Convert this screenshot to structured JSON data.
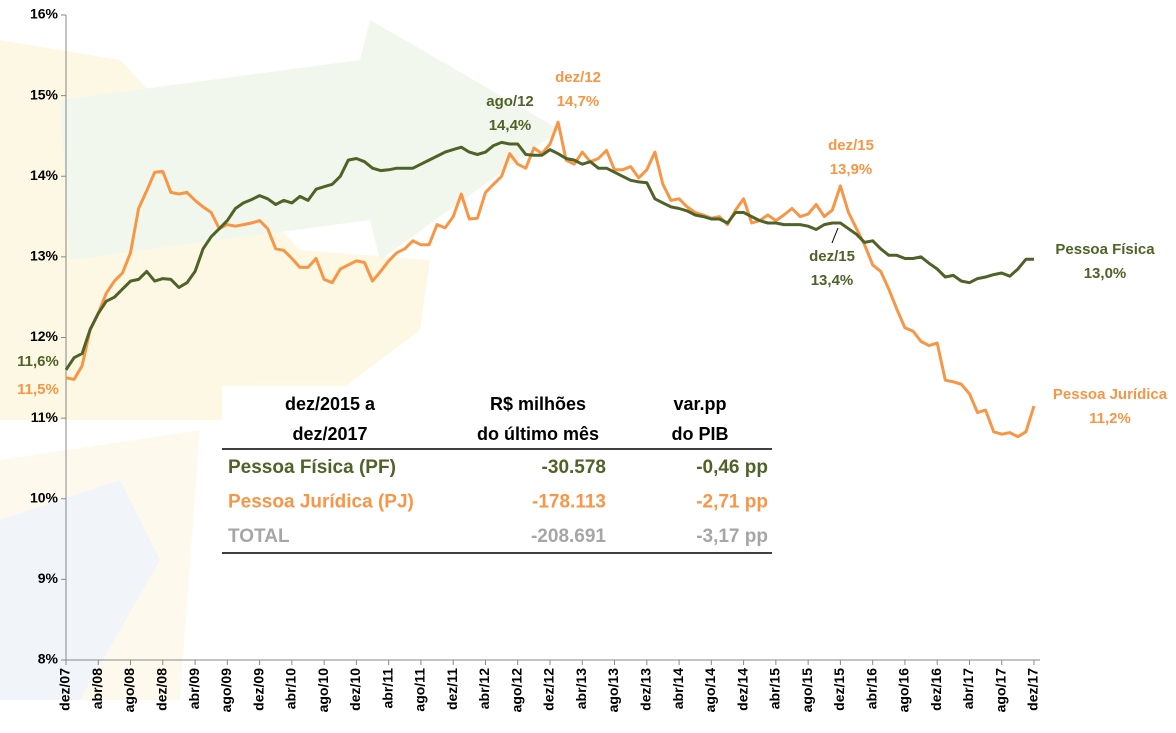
{
  "chart_data": {
    "type": "line",
    "categories": [
      "dez/07",
      null,
      null,
      null,
      "abr/08",
      null,
      null,
      null,
      "ago/08",
      null,
      null,
      null,
      "dez/08",
      null,
      null,
      null,
      "abr/09",
      null,
      null,
      null,
      "ago/09",
      null,
      null,
      null,
      "dez/09",
      null,
      null,
      null,
      "abr/10",
      null,
      null,
      null,
      "ago/10",
      null,
      null,
      null,
      "dez/10",
      null,
      null,
      null,
      "abr/11",
      null,
      null,
      null,
      "ago/11",
      null,
      null,
      null,
      "dez/11",
      null,
      null,
      null,
      "abr/12",
      null,
      null,
      null,
      "ago/12",
      null,
      null,
      null,
      "dez/12",
      null,
      null,
      null,
      "abr/13",
      null,
      null,
      null,
      "ago/13",
      null,
      null,
      null,
      "dez/13",
      null,
      null,
      null,
      "abr/14",
      null,
      null,
      null,
      "ago/14",
      null,
      null,
      null,
      "dez/14",
      null,
      null,
      null,
      "abr/15",
      null,
      null,
      null,
      "ago/15",
      null,
      null,
      null,
      "dez/15",
      null,
      null,
      null,
      "abr/16",
      null,
      null,
      null,
      "ago/16",
      null,
      null,
      null,
      "dez/16",
      null,
      null,
      null,
      "abr/17",
      null,
      null,
      null,
      "ago/17",
      null,
      null,
      null,
      "dez/17"
    ],
    "series": [
      {
        "name": "Pessoa Física",
        "color": "#4f6228",
        "end_label": "13,0%",
        "values": [
          11.6,
          11.75,
          11.8,
          12.1,
          12.3,
          12.45,
          12.5,
          12.6,
          12.7,
          12.72,
          12.82,
          12.7,
          12.73,
          12.72,
          12.62,
          12.68,
          12.82,
          13.1,
          13.25,
          13.35,
          13.45,
          13.6,
          13.67,
          13.71,
          13.76,
          13.72,
          13.65,
          13.7,
          13.67,
          13.75,
          13.7,
          13.84,
          13.87,
          13.9,
          14.0,
          14.2,
          14.22,
          14.18,
          14.1,
          14.07,
          14.08,
          14.1,
          14.1,
          14.1,
          14.15,
          14.2,
          14.25,
          14.3,
          14.33,
          14.36,
          14.3,
          14.27,
          14.3,
          14.38,
          14.42,
          14.4,
          14.4,
          14.27,
          14.26,
          14.26,
          14.33,
          14.28,
          14.22,
          14.2,
          14.15,
          14.18,
          14.1,
          14.1,
          14.05,
          14.0,
          13.95,
          13.93,
          13.92,
          13.72,
          13.67,
          13.62,
          13.6,
          13.57,
          13.52,
          13.5,
          13.47,
          13.47,
          13.42,
          13.55,
          13.55,
          13.5,
          13.45,
          13.42,
          13.42,
          13.4,
          13.4,
          13.4,
          13.38,
          13.34,
          13.4,
          13.42,
          13.42,
          13.35,
          13.28,
          13.18,
          13.2,
          13.1,
          13.02,
          13.02,
          12.98,
          12.98,
          13.0,
          12.92,
          12.85,
          12.75,
          12.77,
          12.7,
          12.68,
          12.73,
          12.75,
          12.78,
          12.8,
          12.76,
          12.85,
          12.97,
          12.97
        ]
      },
      {
        "name": "Pessoa Jurídica",
        "color": "#f79646",
        "end_label": "11,2%",
        "values": [
          11.5,
          11.48,
          11.65,
          12.1,
          12.3,
          12.55,
          12.7,
          12.8,
          13.05,
          13.6,
          13.82,
          14.05,
          14.06,
          13.8,
          13.78,
          13.8,
          13.7,
          13.62,
          13.55,
          13.35,
          13.4,
          13.38,
          13.4,
          13.42,
          13.45,
          13.35,
          13.1,
          13.08,
          12.98,
          12.87,
          12.87,
          12.98,
          12.72,
          12.68,
          12.85,
          12.9,
          12.95,
          12.93,
          12.7,
          12.82,
          12.95,
          13.05,
          13.1,
          13.2,
          13.15,
          13.15,
          13.4,
          13.36,
          13.5,
          13.78,
          13.47,
          13.48,
          13.8,
          13.9,
          14.0,
          14.28,
          14.15,
          14.1,
          14.35,
          14.28,
          14.4,
          14.67,
          14.2,
          14.15,
          14.3,
          14.18,
          14.22,
          14.32,
          14.08,
          14.08,
          14.12,
          13.98,
          14.08,
          14.3,
          13.9,
          13.7,
          13.72,
          13.62,
          13.55,
          13.52,
          13.48,
          13.5,
          13.4,
          13.58,
          13.72,
          13.42,
          13.45,
          13.52,
          13.45,
          13.52,
          13.6,
          13.5,
          13.53,
          13.65,
          13.5,
          13.58,
          13.88,
          13.55,
          13.35,
          13.15,
          12.9,
          12.82,
          12.6,
          12.35,
          12.12,
          12.08,
          11.95,
          11.9,
          11.93,
          11.47,
          11.45,
          11.42,
          11.3,
          11.07,
          11.1,
          10.83,
          10.8,
          10.82,
          10.77,
          10.83,
          11.15
        ]
      }
    ],
    "ylim": [
      8,
      16
    ],
    "yticks": [
      {
        "value": 8,
        "label": "8%"
      },
      {
        "value": 9,
        "label": "9%"
      },
      {
        "value": 10,
        "label": "10%"
      },
      {
        "value": 11,
        "label": "11%"
      },
      {
        "value": 12,
        "label": "12%"
      },
      {
        "value": 13,
        "label": "13%"
      },
      {
        "value": 14,
        "label": "14%"
      },
      {
        "value": 15,
        "label": "15%"
      },
      {
        "value": 16,
        "label": "16%"
      }
    ],
    "annotations": [
      {
        "lines": [
          "11,6%"
        ],
        "color": "#4f6228"
      },
      {
        "lines": [
          "11,5%"
        ],
        "color": "#f79646"
      },
      {
        "lines": [
          "ago/12",
          "14,4%"
        ],
        "color": "#4f6228"
      },
      {
        "lines": [
          "dez/12",
          "14,7%"
        ],
        "color": "#f79646"
      },
      {
        "lines": [
          "dez/15",
          "13,9%"
        ],
        "color": "#f79646"
      },
      {
        "lines": [
          "dez/15",
          "13,4%"
        ],
        "color": "#4f6228"
      }
    ],
    "table": {
      "header": [
        [
          "dez/2015 a",
          "dez/2017"
        ],
        [
          "R$ milhões",
          "do último mês"
        ],
        [
          "var.pp",
          "do PIB"
        ]
      ],
      "rows": [
        {
          "label": "Pessoa Física (PF)",
          "value": "-30.578",
          "pp": "-0,46 pp",
          "color": "#4f6228"
        },
        {
          "label": "Pessoa Jurídica (PJ)",
          "value": "-178.113",
          "pp": "-2,71 pp",
          "color": "#f79646"
        },
        {
          "label": "TOTAL",
          "value": "-208.691",
          "pp": "-3,17 pp",
          "color": "#a6a6a6"
        }
      ]
    }
  }
}
